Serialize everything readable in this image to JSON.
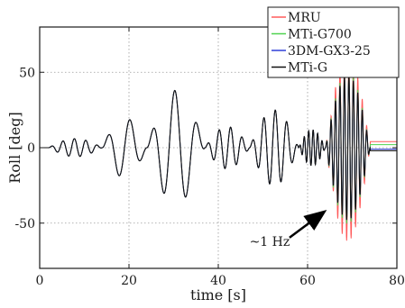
{
  "chart_data": {
    "type": "line",
    "xlabel": "time [s]",
    "ylabel": "Roll [deg]",
    "xlim": [
      0,
      80
    ],
    "ylim": [
      -80,
      80
    ],
    "x_ticks": [
      0,
      20,
      40,
      60,
      80
    ],
    "y_ticks": [
      50,
      0,
      -50
    ],
    "x_tick_labels": [
      "0",
      "20",
      "40",
      "60",
      "80"
    ],
    "y_tick_labels": [
      "50",
      "0",
      "-50"
    ],
    "grid": true,
    "grid_style": "dotted",
    "legend_position": "top-right",
    "series": [
      {
        "name": "MRU",
        "color": "#ff5a5a"
      },
      {
        "name": "MTi-G700",
        "color": "#4fd24f"
      },
      {
        "name": "3DM-GX3-25",
        "color": "#2f3fd8"
      },
      {
        "name": "MTi-G",
        "color": "#111111"
      }
    ],
    "signal_segments": [
      {
        "t": [
          0,
          2
        ],
        "freq_hz": 0,
        "amp": 0
      },
      {
        "t": [
          2,
          14
        ],
        "freq_hz": 0.39,
        "amp": 6
      },
      {
        "t": [
          14,
          24
        ],
        "freq_hz": 0.2,
        "amp": 20
      },
      {
        "t": [
          24,
          37
        ],
        "freq_hz": 0.2,
        "amp": 38
      },
      {
        "t": [
          37,
          47
        ],
        "freq_hz": 0.39,
        "amp": 14
      },
      {
        "t": [
          47,
          58
        ],
        "freq_hz": 0.39,
        "amp": 25
      },
      {
        "t": [
          58,
          64
        ],
        "freq_hz": 1.0,
        "amp": 12
      },
      {
        "t": [
          64,
          74
        ],
        "freq_hz": 1.0,
        "amp": 48
      },
      {
        "t": [
          74,
          80
        ],
        "freq_hz": 0,
        "amp": 0
      }
    ],
    "annotations": [
      {
        "text": "~1 Hz",
        "x": 51.5,
        "y": -62,
        "arrow_to": {
          "x": 63.5,
          "y": -43
        }
      }
    ]
  }
}
